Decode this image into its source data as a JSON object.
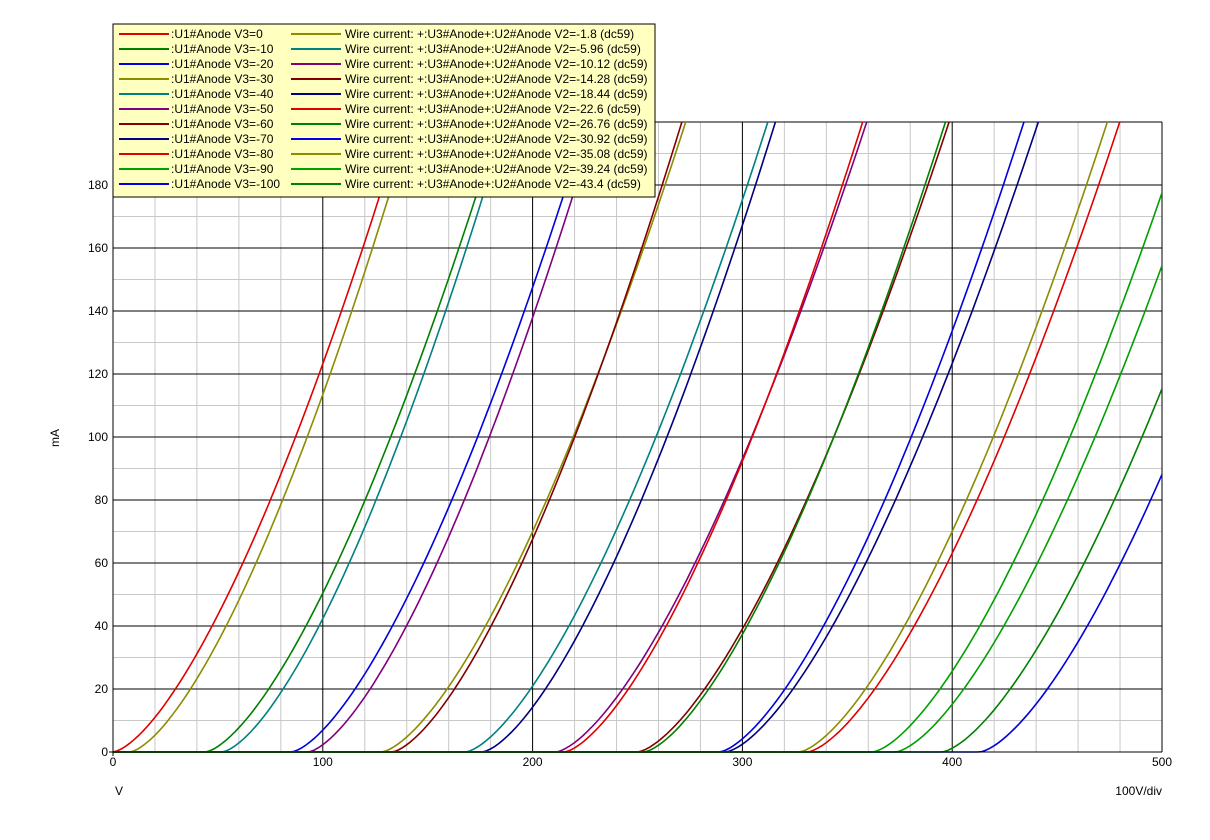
{
  "chart_data": {
    "type": "line",
    "xlabel": "V",
    "ylabel": "mA",
    "scale_label": "100V/div",
    "xlim": [
      0,
      500
    ],
    "ylim": [
      0,
      200
    ],
    "grid": true,
    "legend_position": "top-left",
    "x_ticks": [
      "0",
      "100",
      "200",
      "300",
      "400",
      "500"
    ],
    "y_ticks": [
      "0",
      "20",
      "40",
      "60",
      "80",
      "100",
      "120",
      "140",
      "160",
      "180"
    ],
    "x_tick_values": [
      0,
      100,
      200,
      300,
      400,
      500
    ],
    "y_tick_values": [
      0,
      20,
      40,
      60,
      80,
      100,
      120,
      140,
      160,
      180
    ],
    "curve_model": "I = k * (V - V0)^1.5 for V > V0, else 0",
    "series": [
      {
        "name": ":U1#Anode V3=0",
        "color": "#e00000",
        "v0": 0,
        "k": 0.1232
      },
      {
        "name": ":U1#Anode V3=-10",
        "color": "#008000",
        "v0": 44,
        "k": 0.1204
      },
      {
        "name": ":U1#Anode V3=-20",
        "color": "#0000e0",
        "v0": 85,
        "k": 0.1196
      },
      {
        "name": ":U1#Anode V3=-30",
        "color": "#8c8c00",
        "v0": 128,
        "k": 0.1146
      },
      {
        "name": ":U1#Anode V3=-40",
        "color": "#008080",
        "v0": 168,
        "k": 0.1156
      },
      {
        "name": ":U1#Anode V3=-50",
        "color": "#800080",
        "v0": 211,
        "k": 0.1108
      },
      {
        "name": ":U1#Anode V3=-60",
        "color": "#800000",
        "v0": 250,
        "k": 0.1105
      },
      {
        "name": ":U1#Anode V3=-70",
        "color": "#000080",
        "v0": 292,
        "k": 0.1099
      },
      {
        "name": ":U1#Anode V3=-80",
        "color": "#e00000",
        "v0": 331,
        "k": 0.1101
      },
      {
        "name": ":U1#Anode V3=-90",
        "color": "#00a000",
        "v0": 373,
        "k": 0.1079
      },
      {
        "name": ":U1#Anode V3=-100",
        "color": "#0000e0",
        "v0": 413,
        "k": 0.1086
      },
      {
        "name": "Wire current: +:U3#Anode+:U2#Anode V2=-1.8 (dc59)",
        "color": "#8c8c00",
        "v0": 8,
        "k": 0.1286
      },
      {
        "name": "Wire current: +:U3#Anode+:U2#Anode V2=-5.96 (dc59)",
        "color": "#008080",
        "v0": 52,
        "k": 0.1273
      },
      {
        "name": "Wire current: +:U3#Anode+:U2#Anode V2=-10.12 (dc59)",
        "color": "#800080",
        "v0": 93,
        "k": 0.1246
      },
      {
        "name": "Wire current: +:U3#Anode+:U2#Anode V2=-14.28 (dc59)",
        "color": "#800000",
        "v0": 133,
        "k": 0.1232
      },
      {
        "name": "Wire current: +:U3#Anode+:U2#Anode V2=-18.44 (dc59)",
        "color": "#000080",
        "v0": 176,
        "k": 0.1211
      },
      {
        "name": "Wire current: +:U3#Anode+:U2#Anode V2=-22.6 (dc59)",
        "color": "#e00000",
        "v0": 215,
        "k": 0.1178
      },
      {
        "name": "Wire current: +:U3#Anode+:U2#Anode V2=-26.76 (dc59)",
        "color": "#008000",
        "v0": 253,
        "k": 0.116
      },
      {
        "name": "Wire current: +:U3#Anode+:U2#Anode V2=-30.92 (dc59)",
        "color": "#0000e0",
        "v0": 289,
        "k": 0.1143
      },
      {
        "name": "Wire current: +:U3#Anode+:U2#Anode V2=-35.08 (dc59)",
        "color": "#8c8c00",
        "v0": 327,
        "k": 0.1123
      },
      {
        "name": "Wire current: +:U3#Anode+:U2#Anode V2=-39.24 (dc59)",
        "color": "#00a000",
        "v0": 362,
        "k": 0.1095
      },
      {
        "name": "Wire current: +:U3#Anode+:U2#Anode V2=-43.4 (dc59)",
        "color": "#008000",
        "v0": 395,
        "k": 0.1072
      }
    ]
  }
}
